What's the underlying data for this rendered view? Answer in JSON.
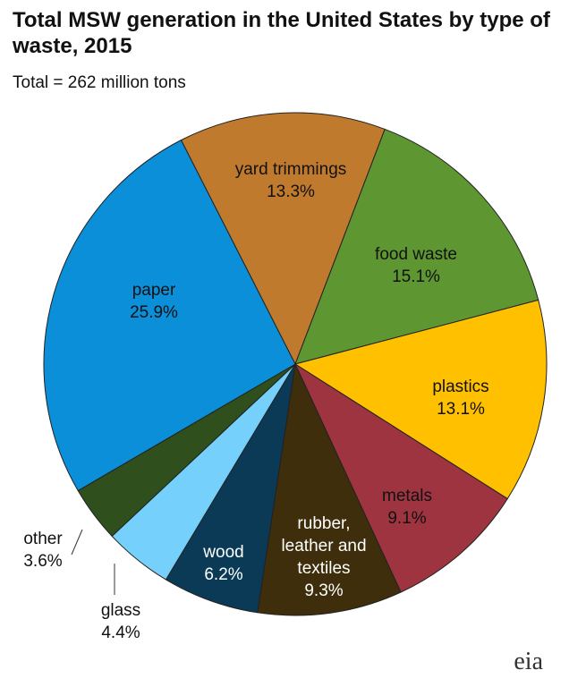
{
  "chart_data": {
    "type": "pie",
    "title": "Total MSW generation in the United States by type of waste, 2015",
    "subtitle": "Total = 262 million tons",
    "categories": [
      "yard trimmings",
      "food waste",
      "plastics",
      "metals",
      "rubber, leather and textiles",
      "wood",
      "glass",
      "other",
      "paper"
    ],
    "values": [
      13.3,
      15.1,
      13.1,
      9.1,
      9.3,
      6.2,
      4.4,
      3.6,
      25.9
    ],
    "value_labels": [
      "13.3%",
      "15.1%",
      "13.1%",
      "9.1%",
      "9.3%",
      "6.2%",
      "4.4%",
      "3.6%",
      "25.9%"
    ],
    "colors": [
      "#c07a2e",
      "#5e9732",
      "#ffc000",
      "#9e3440",
      "#3e2e0c",
      "#0b3a56",
      "#75d0fb",
      "#2f4f1c",
      "#0c8fd9"
    ]
  },
  "logo": "eia"
}
